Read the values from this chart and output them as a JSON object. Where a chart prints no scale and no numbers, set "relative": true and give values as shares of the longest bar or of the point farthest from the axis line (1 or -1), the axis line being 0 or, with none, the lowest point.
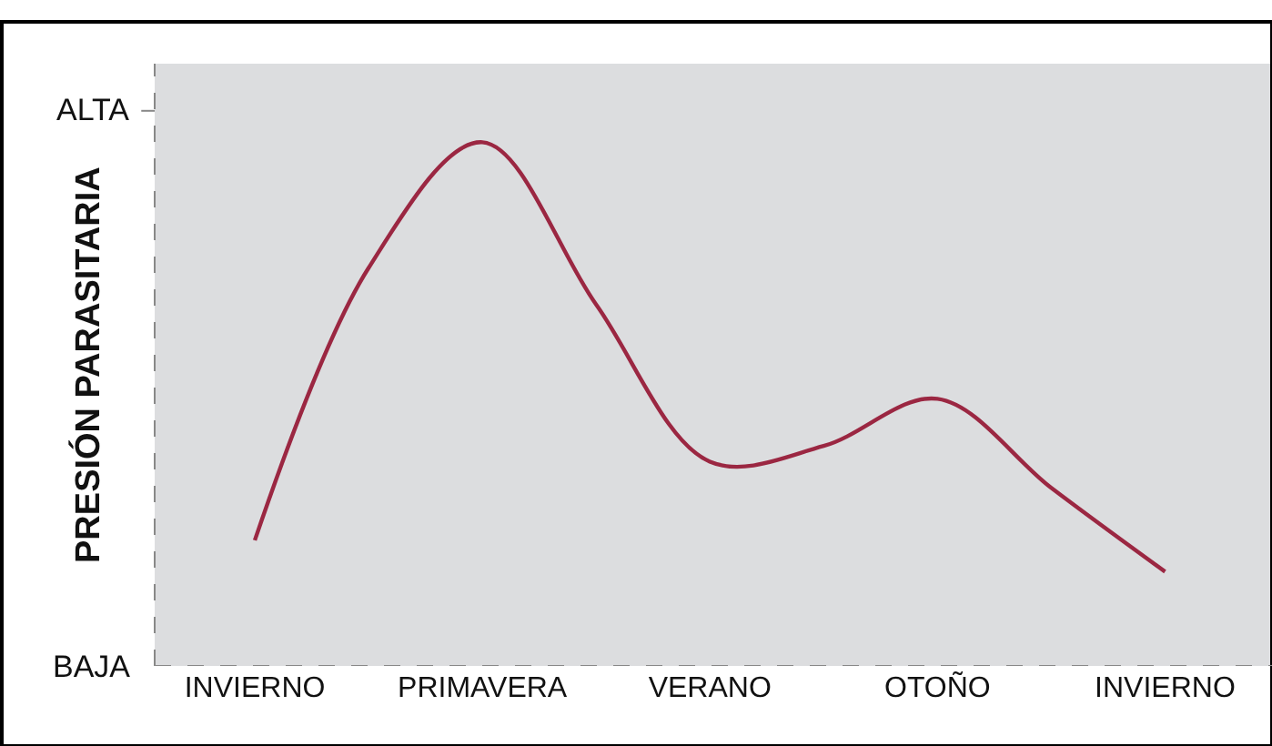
{
  "chart_data": {
    "type": "line",
    "relative": true,
    "ylabel": "PRESIÓN PARASITARIA",
    "categories": [
      "INVIERNO",
      null,
      "PRIMAVERA",
      null,
      "VERANO",
      null,
      "OTOÑO",
      null,
      "INVIERNO"
    ],
    "series": [
      {
        "color": "#9b2742",
        "values": [
          0.24,
          0.76,
          1.0,
          0.69,
          0.39,
          0.42,
          0.51,
          0.34,
          0.18
        ]
      }
    ],
    "annotations": [
      "ALTA",
      "BAJA"
    ],
    "grid": false,
    "marker": "none",
    "line_style": "solid"
  }
}
